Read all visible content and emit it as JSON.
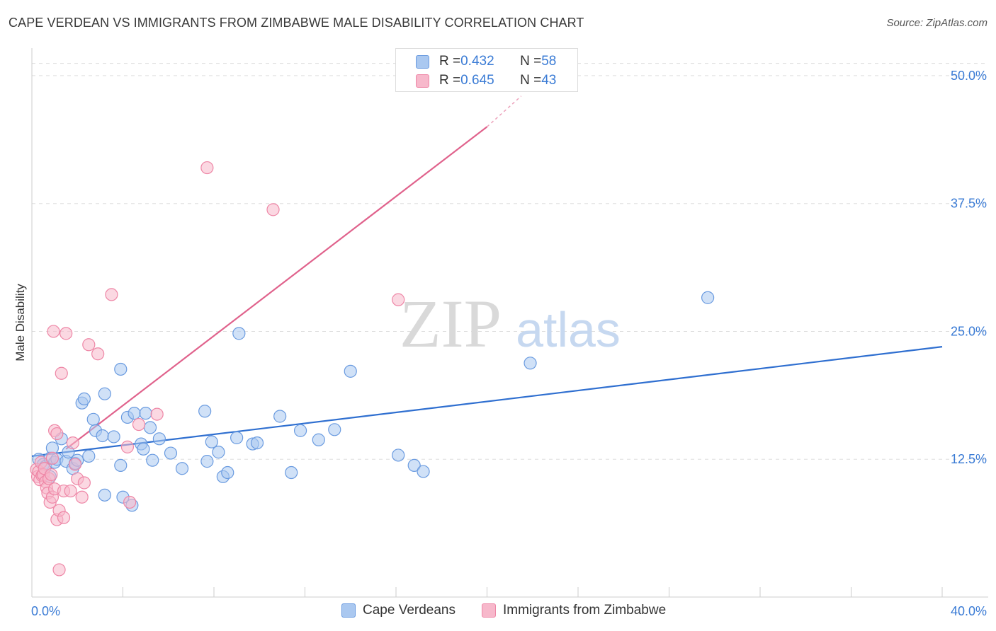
{
  "title": "CAPE VERDEAN VS IMMIGRANTS FROM ZIMBABWE MALE DISABILITY CORRELATION CHART",
  "source": "Source: ZipAtlas.com",
  "watermark": {
    "zip": "ZIP",
    "atlas": "atlas"
  },
  "colors": {
    "blue_fill": "#aac8f0",
    "blue_stroke": "#6a9be0",
    "blue_line": "#2f6fd0",
    "pink_fill": "#f7b8cb",
    "pink_stroke": "#ee86a6",
    "pink_line": "#e0628c",
    "tick_label": "#3a7bd5",
    "grid": "#dddddd"
  },
  "legend_top": [
    {
      "r_label": "R = ",
      "r_value": "0.432",
      "n_label": "N = ",
      "n_value": "58"
    },
    {
      "r_label": "R = ",
      "r_value": "0.645",
      "n_label": "N = ",
      "n_value": "43"
    }
  ],
  "legend_bottom": [
    {
      "label": "Cape Verdeans"
    },
    {
      "label": "Immigrants from Zimbabwe"
    }
  ],
  "chart_data": {
    "type": "scatter",
    "title": "CAPE VERDEAN VS IMMIGRANTS FROM ZIMBABWE MALE DISABILITY CORRELATION CHART",
    "xlabel": "",
    "ylabel": "Male Disability",
    "xlim": [
      0,
      40
    ],
    "ylim": [
      0,
      52
    ],
    "x_tick_labels": [
      {
        "value": 0,
        "label": "0.0%"
      },
      {
        "value": 40,
        "label": "40.0%"
      }
    ],
    "y_ticks": [
      {
        "value": 12.5,
        "label": "12.5%"
      },
      {
        "value": 25,
        "label": "25.0%"
      },
      {
        "value": 37.5,
        "label": "37.5%"
      },
      {
        "value": 50,
        "label": "50.0%"
      }
    ],
    "x_minor_ticks": [
      0,
      4,
      8,
      12,
      16,
      20,
      24,
      28,
      32,
      36,
      40
    ],
    "grid": true,
    "series": [
      {
        "name": "Cape Verdeans",
        "r": 0.432,
        "n": 58,
        "trend": {
          "x": [
            0,
            40
          ],
          "y": [
            12.8,
            23.5
          ]
        },
        "points": [
          [
            0.3,
            12.5
          ],
          [
            0.5,
            12.0
          ],
          [
            0.6,
            11.8
          ],
          [
            0.8,
            12.6
          ],
          [
            0.9,
            13.6
          ],
          [
            1.0,
            12.2
          ],
          [
            1.1,
            12.5
          ],
          [
            1.3,
            14.5
          ],
          [
            1.5,
            12.3
          ],
          [
            1.6,
            13.2
          ],
          [
            1.8,
            11.6
          ],
          [
            1.9,
            12.1
          ],
          [
            2.0,
            12.4
          ],
          [
            2.2,
            18.0
          ],
          [
            2.3,
            18.4
          ],
          [
            2.5,
            12.8
          ],
          [
            2.7,
            16.4
          ],
          [
            2.8,
            15.3
          ],
          [
            3.1,
            14.8
          ],
          [
            3.2,
            18.9
          ],
          [
            3.6,
            14.7
          ],
          [
            3.9,
            21.3
          ],
          [
            3.9,
            11.9
          ],
          [
            4.2,
            16.6
          ],
          [
            4.5,
            17.0
          ],
          [
            4.8,
            14.0
          ],
          [
            4.9,
            13.5
          ],
          [
            5.0,
            17.0
          ],
          [
            5.2,
            15.6
          ],
          [
            5.3,
            12.4
          ],
          [
            5.6,
            14.5
          ],
          [
            6.1,
            13.1
          ],
          [
            6.6,
            11.6
          ],
          [
            7.6,
            17.2
          ],
          [
            7.7,
            12.3
          ],
          [
            7.9,
            14.2
          ],
          [
            8.2,
            13.2
          ],
          [
            8.4,
            10.8
          ],
          [
            8.6,
            11.2
          ],
          [
            9.0,
            14.6
          ],
          [
            9.1,
            24.8
          ],
          [
            9.7,
            14.0
          ],
          [
            9.9,
            14.1
          ],
          [
            10.9,
            16.7
          ],
          [
            11.4,
            11.2
          ],
          [
            11.8,
            15.3
          ],
          [
            12.6,
            14.4
          ],
          [
            13.3,
            15.4
          ],
          [
            14.0,
            21.1
          ],
          [
            16.1,
            12.9
          ],
          [
            16.8,
            11.9
          ],
          [
            17.2,
            11.3
          ],
          [
            21.9,
            21.9
          ],
          [
            29.7,
            28.3
          ],
          [
            3.2,
            9.0
          ],
          [
            4.0,
            8.8
          ],
          [
            4.4,
            8.0
          ],
          [
            0.8,
            10.8
          ]
        ]
      },
      {
        "name": "Immigrants from Zimbabwe",
        "r": 0.645,
        "n": 43,
        "trend": {
          "x": [
            1.5,
            20.0
          ],
          "y": [
            13.5,
            45.0
          ]
        },
        "trend_dashed": {
          "x": [
            20.0,
            21.5
          ],
          "y": [
            45.0,
            48.0
          ]
        },
        "points": [
          [
            0.2,
            11.5
          ],
          [
            0.25,
            10.8
          ],
          [
            0.3,
            11.3
          ],
          [
            0.35,
            10.5
          ],
          [
            0.4,
            12.2
          ],
          [
            0.45,
            10.9
          ],
          [
            0.5,
            11.0
          ],
          [
            0.55,
            11.6
          ],
          [
            0.6,
            10.3
          ],
          [
            0.65,
            9.7
          ],
          [
            0.7,
            9.2
          ],
          [
            0.75,
            10.6
          ],
          [
            0.8,
            8.3
          ],
          [
            0.85,
            11.0
          ],
          [
            0.9,
            12.6
          ],
          [
            0.9,
            8.8
          ],
          [
            1.0,
            15.3
          ],
          [
            1.0,
            9.6
          ],
          [
            1.1,
            15.0
          ],
          [
            1.1,
            6.6
          ],
          [
            1.2,
            7.5
          ],
          [
            1.2,
            1.7
          ],
          [
            1.3,
            20.9
          ],
          [
            1.4,
            6.8
          ],
          [
            1.4,
            9.4
          ],
          [
            1.5,
            24.8
          ],
          [
            1.7,
            9.4
          ],
          [
            1.8,
            14.1
          ],
          [
            1.9,
            12.0
          ],
          [
            2.0,
            10.6
          ],
          [
            2.2,
            8.8
          ],
          [
            2.3,
            10.2
          ],
          [
            2.5,
            23.7
          ],
          [
            2.9,
            22.8
          ],
          [
            3.5,
            28.6
          ],
          [
            4.2,
            13.7
          ],
          [
            4.3,
            8.3
          ],
          [
            4.7,
            15.9
          ],
          [
            5.5,
            16.9
          ],
          [
            7.7,
            41.0
          ],
          [
            10.6,
            36.9
          ],
          [
            16.1,
            28.1
          ],
          [
            0.95,
            25.0
          ]
        ]
      }
    ]
  }
}
